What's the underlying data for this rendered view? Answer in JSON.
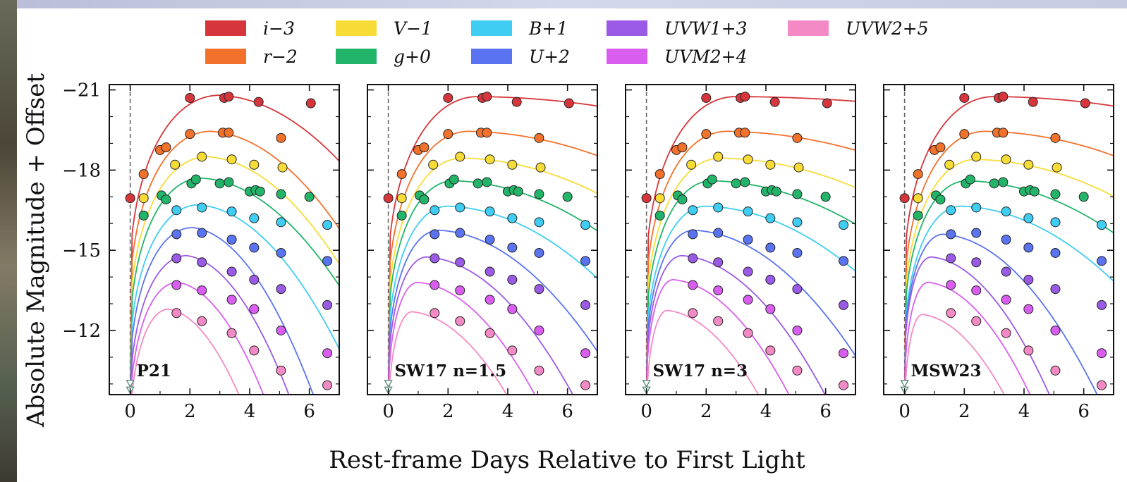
{
  "chart_data": {
    "type": "scatter",
    "xlabel": "Rest-frame Days Relative to First Light",
    "ylabel": "Absolute Magnitude + Offset",
    "xlim": [
      -0.7,
      7.0
    ],
    "ylim": [
      -9.6,
      -21.2
    ],
    "y_inverted": true,
    "x_ticks": [
      "0",
      "2",
      "4",
      "6"
    ],
    "y_ticks": [
      "−21",
      "−18",
      "−15",
      "−12"
    ],
    "legend_position": "top",
    "grid": false,
    "bands": [
      {
        "label": "i−3",
        "color": "#d6363b"
      },
      {
        "label": "r−2",
        "color": "#f2722b"
      },
      {
        "label": "V−1",
        "color": "#f7dc38"
      },
      {
        "label": "g+0",
        "color": "#22b56a"
      },
      {
        "label": "B+1",
        "color": "#3fcdf3"
      },
      {
        "label": "U+2",
        "color": "#5a73f0"
      },
      {
        "label": "UVW1+3",
        "color": "#9a5ae6"
      },
      {
        "label": "UVM2+4",
        "color": "#d95ef0"
      },
      {
        "label": "UVW2+5",
        "color": "#f48ac5"
      }
    ],
    "points": {
      "i−3": [
        [
          0.0,
          -16.95
        ],
        [
          2.0,
          -20.7
        ],
        [
          3.15,
          -20.7
        ],
        [
          3.3,
          -20.75
        ],
        [
          4.3,
          -20.55
        ],
        [
          6.05,
          -20.5
        ]
      ],
      "r−2": [
        [
          0.45,
          -17.85
        ],
        [
          1.0,
          -18.75
        ],
        [
          1.2,
          -18.85
        ],
        [
          2.0,
          -19.35
        ],
        [
          3.1,
          -19.4
        ],
        [
          3.3,
          -19.4
        ],
        [
          5.05,
          -19.2
        ]
      ],
      "V−1": [
        [
          0.45,
          -16.95
        ],
        [
          1.5,
          -18.2
        ],
        [
          2.4,
          -18.5
        ],
        [
          3.4,
          -18.4
        ],
        [
          4.15,
          -18.2
        ],
        [
          5.1,
          -18.1
        ]
      ],
      "g+0": [
        [
          0.45,
          -16.3
        ],
        [
          1.05,
          -17.05
        ],
        [
          1.2,
          -16.9
        ],
        [
          2.05,
          -17.5
        ],
        [
          2.2,
          -17.65
        ],
        [
          3.0,
          -17.5
        ],
        [
          3.3,
          -17.55
        ],
        [
          4.0,
          -17.2
        ],
        [
          4.2,
          -17.25
        ],
        [
          4.35,
          -17.2
        ],
        [
          5.05,
          -17.1
        ],
        [
          6.0,
          -17.0
        ]
      ],
      "B+1": [
        [
          1.55,
          -16.5
        ],
        [
          2.4,
          -16.6
        ],
        [
          3.4,
          -16.45
        ],
        [
          4.15,
          -16.2
        ],
        [
          5.05,
          -16.05
        ],
        [
          6.6,
          -15.95
        ]
      ],
      "U+2": [
        [
          1.55,
          -15.6
        ],
        [
          2.4,
          -15.65
        ],
        [
          3.4,
          -15.4
        ],
        [
          4.15,
          -15.1
        ],
        [
          5.05,
          -14.9
        ],
        [
          6.6,
          -14.6
        ]
      ],
      "UVW1+3": [
        [
          1.55,
          -14.7
        ],
        [
          2.4,
          -14.55
        ],
        [
          3.4,
          -14.2
        ],
        [
          4.15,
          -13.9
        ],
        [
          5.05,
          -13.55
        ],
        [
          6.6,
          -12.95
        ]
      ],
      "UVM2+4": [
        [
          1.55,
          -13.7
        ],
        [
          2.4,
          -13.5
        ],
        [
          3.4,
          -13.15
        ],
        [
          4.15,
          -12.8
        ],
        [
          5.05,
          -12.0
        ],
        [
          6.6,
          -11.15
        ]
      ],
      "UVW2+5": [
        [
          1.55,
          -12.65
        ],
        [
          2.4,
          -12.35
        ],
        [
          3.4,
          -11.9
        ],
        [
          4.15,
          -11.25
        ],
        [
          5.05,
          -10.5
        ],
        [
          6.6,
          -9.95
        ]
      ]
    },
    "panels": [
      {
        "label": "P21",
        "curves": [
          {
            "band": "i−3",
            "peak_mag": -20.8,
            "peak_t": 3.0,
            "decline": 0.28
          },
          {
            "band": "r−2",
            "peak_mag": -19.45,
            "peak_t": 2.7,
            "decline": 0.36
          },
          {
            "band": "V−1",
            "peak_mag": -18.5,
            "peak_t": 2.6,
            "decline": 0.38
          },
          {
            "band": "g+0",
            "peak_mag": -17.7,
            "peak_t": 2.4,
            "decline": 0.35
          },
          {
            "band": "B+1",
            "peak_mag": -16.7,
            "peak_t": 2.3,
            "decline": 0.45
          },
          {
            "band": "U+2",
            "peak_mag": -15.85,
            "peak_t": 2.1,
            "decline": 0.7
          },
          {
            "band": "UVW1+3",
            "peak_mag": -14.8,
            "peak_t": 1.9,
            "decline": 0.8
          },
          {
            "band": "UVM2+4",
            "peak_mag": -13.8,
            "peak_t": 1.6,
            "decline": 0.9
          },
          {
            "band": "UVW2+5",
            "peak_mag": -12.8,
            "peak_t": 1.3,
            "decline": 1.0
          }
        ]
      },
      {
        "label": "SW17 n=1.5",
        "curves": [
          {
            "band": "i−3",
            "peak_mag": -20.75,
            "peak_t": 3.0,
            "decline": 0.04
          },
          {
            "band": "r−2",
            "peak_mag": -19.45,
            "peak_t": 2.7,
            "decline": 0.09
          },
          {
            "band": "V−1",
            "peak_mag": -18.45,
            "peak_t": 2.5,
            "decline": 0.12
          },
          {
            "band": "g+0",
            "peak_mag": -17.6,
            "peak_t": 2.2,
            "decline": 0.15
          },
          {
            "band": "B+1",
            "peak_mag": -16.65,
            "peak_t": 2.0,
            "decline": 0.2
          },
          {
            "band": "U+2",
            "peak_mag": -15.75,
            "peak_t": 1.7,
            "decline": 0.3
          },
          {
            "band": "UVW1+3",
            "peak_mag": -14.75,
            "peak_t": 1.3,
            "decline": 0.4
          },
          {
            "band": "UVM2+4",
            "peak_mag": -13.8,
            "peak_t": 1.0,
            "decline": 0.5
          },
          {
            "band": "UVW2+5",
            "peak_mag": -12.7,
            "peak_t": 0.8,
            "decline": 0.55
          }
        ]
      },
      {
        "label": "SW17 n=3",
        "curves": [
          {
            "band": "i−3",
            "peak_mag": -20.75,
            "peak_t": 3.0,
            "decline": 0.02
          },
          {
            "band": "r−2",
            "peak_mag": -19.45,
            "peak_t": 2.7,
            "decline": 0.07
          },
          {
            "band": "V−1",
            "peak_mag": -18.45,
            "peak_t": 2.5,
            "decline": 0.1
          },
          {
            "band": "g+0",
            "peak_mag": -17.6,
            "peak_t": 2.2,
            "decline": 0.13
          },
          {
            "band": "B+1",
            "peak_mag": -16.65,
            "peak_t": 2.0,
            "decline": 0.18
          },
          {
            "band": "U+2",
            "peak_mag": -15.75,
            "peak_t": 1.6,
            "decline": 0.3
          },
          {
            "band": "UVW1+3",
            "peak_mag": -14.8,
            "peak_t": 1.2,
            "decline": 0.42
          },
          {
            "band": "UVM2+4",
            "peak_mag": -13.9,
            "peak_t": 0.9,
            "decline": 0.52
          },
          {
            "band": "UVW2+5",
            "peak_mag": -12.75,
            "peak_t": 0.7,
            "decline": 0.6
          }
        ]
      },
      {
        "label": "MSW23",
        "curves": [
          {
            "band": "i−3",
            "peak_mag": -20.75,
            "peak_t": 3.0,
            "decline": 0.04
          },
          {
            "band": "r−2",
            "peak_mag": -19.45,
            "peak_t": 2.7,
            "decline": 0.09
          },
          {
            "band": "V−1",
            "peak_mag": -18.4,
            "peak_t": 2.4,
            "decline": 0.12
          },
          {
            "band": "g+0",
            "peak_mag": -17.6,
            "peak_t": 2.1,
            "decline": 0.15
          },
          {
            "band": "B+1",
            "peak_mag": -16.65,
            "peak_t": 1.9,
            "decline": 0.2
          },
          {
            "band": "U+2",
            "peak_mag": -15.6,
            "peak_t": 1.3,
            "decline": 0.42
          },
          {
            "band": "UVW1+3",
            "peak_mag": -14.75,
            "peak_t": 0.9,
            "decline": 0.6
          },
          {
            "band": "UVM2+4",
            "peak_mag": -13.8,
            "peak_t": 0.8,
            "decline": 0.65
          },
          {
            "band": "UVW2+5",
            "peak_mag": -12.6,
            "peak_t": 0.6,
            "decline": 0.7
          }
        ]
      }
    ],
    "upper_limits": [
      [
        0.0,
        -10.0
      ],
      [
        0.0,
        -9.75
      ]
    ]
  }
}
